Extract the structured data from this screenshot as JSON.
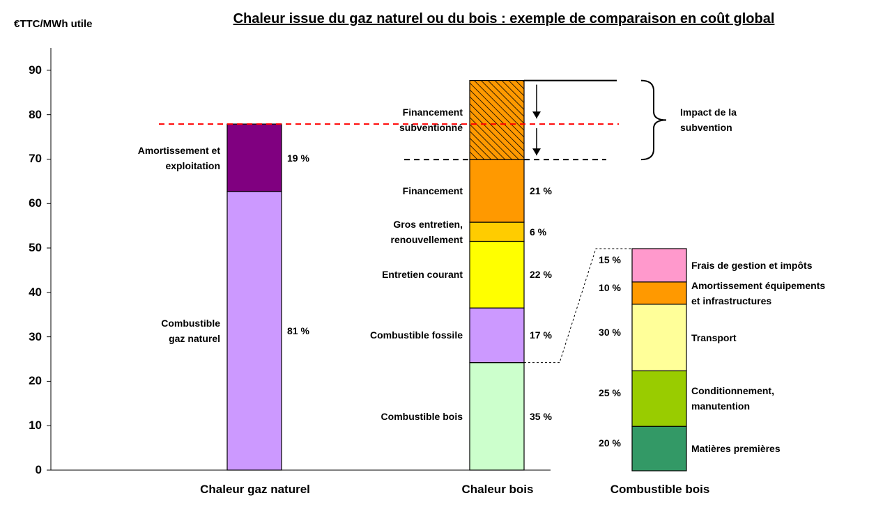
{
  "chart_data": [
    {
      "type": "bar",
      "stacked": true,
      "title": "Chaleur issue du gaz naturel ou du bois : exemple de comparaison en coût global",
      "y_label": "€TTC/MWh utile",
      "categories": [
        "Chaleur gaz naturel",
        "Chaleur bois"
      ],
      "ylim": [
        0,
        95
      ],
      "yticks": [
        0,
        10,
        20,
        30,
        40,
        50,
        60,
        70,
        80,
        90
      ],
      "grid": false,
      "annotation": "Impact de la\nsubvention",
      "series": [
        {
          "name": "Combustible\ngaz naturel",
          "color": "#cc99ff",
          "values": [
            62.7,
            null
          ],
          "percent_labels": [
            "81 %",
            null
          ]
        },
        {
          "name": "Amortissement et\nexploitation",
          "color": "#800080",
          "values": [
            15.2,
            null
          ],
          "percent_labels": [
            "19 %",
            null
          ]
        },
        {
          "name": "Combustible bois",
          "color": "#ccffcc",
          "values": [
            null,
            24.2
          ],
          "percent_labels": [
            null,
            "35 %"
          ]
        },
        {
          "name": "Combustible fossile",
          "color": "#cc99ff",
          "values": [
            null,
            12.3
          ],
          "percent_labels": [
            null,
            "17 %"
          ]
        },
        {
          "name": "Entretien courant",
          "color": "#ffff00",
          "values": [
            null,
            15.0
          ],
          "percent_labels": [
            null,
            "22 %"
          ]
        },
        {
          "name": "Gros entretien,\nrenouvellement",
          "color": "#ffcc00",
          "values": [
            null,
            4.3
          ],
          "percent_labels": [
            null,
            "6 %"
          ]
        },
        {
          "name": "Financement",
          "color": "#ff9900",
          "values": [
            null,
            14.1
          ],
          "percent_labels": [
            null,
            "21 %"
          ]
        },
        {
          "name": "Financement\nsubventionné",
          "color": "#ff9900",
          "hatched": true,
          "values": [
            null,
            17.8
          ]
        }
      ]
    },
    {
      "type": "bar",
      "stacked": true,
      "categories": [
        "Combustible bois"
      ],
      "ylim": [
        0,
        100
      ],
      "series": [
        {
          "name": "Matières premières",
          "color": "#339966",
          "values": [
            20
          ],
          "value_labels": [
            "20 %"
          ]
        },
        {
          "name": "Conditionnement,\nmanutention",
          "color": "#99cc00",
          "values": [
            25
          ],
          "value_labels": [
            "25 %"
          ]
        },
        {
          "name": "Transport",
          "color": "#ffff99",
          "values": [
            30
          ],
          "value_labels": [
            "30 %"
          ]
        },
        {
          "name": "Amortissement équipements\net infrastructures",
          "color": "#ff9900",
          "values": [
            10
          ],
          "value_labels": [
            "10 %"
          ]
        },
        {
          "name": "Frais de gestion et impôts",
          "color": "#ff99cc",
          "values": [
            15
          ],
          "value_labels": [
            "15 %"
          ]
        }
      ]
    }
  ]
}
